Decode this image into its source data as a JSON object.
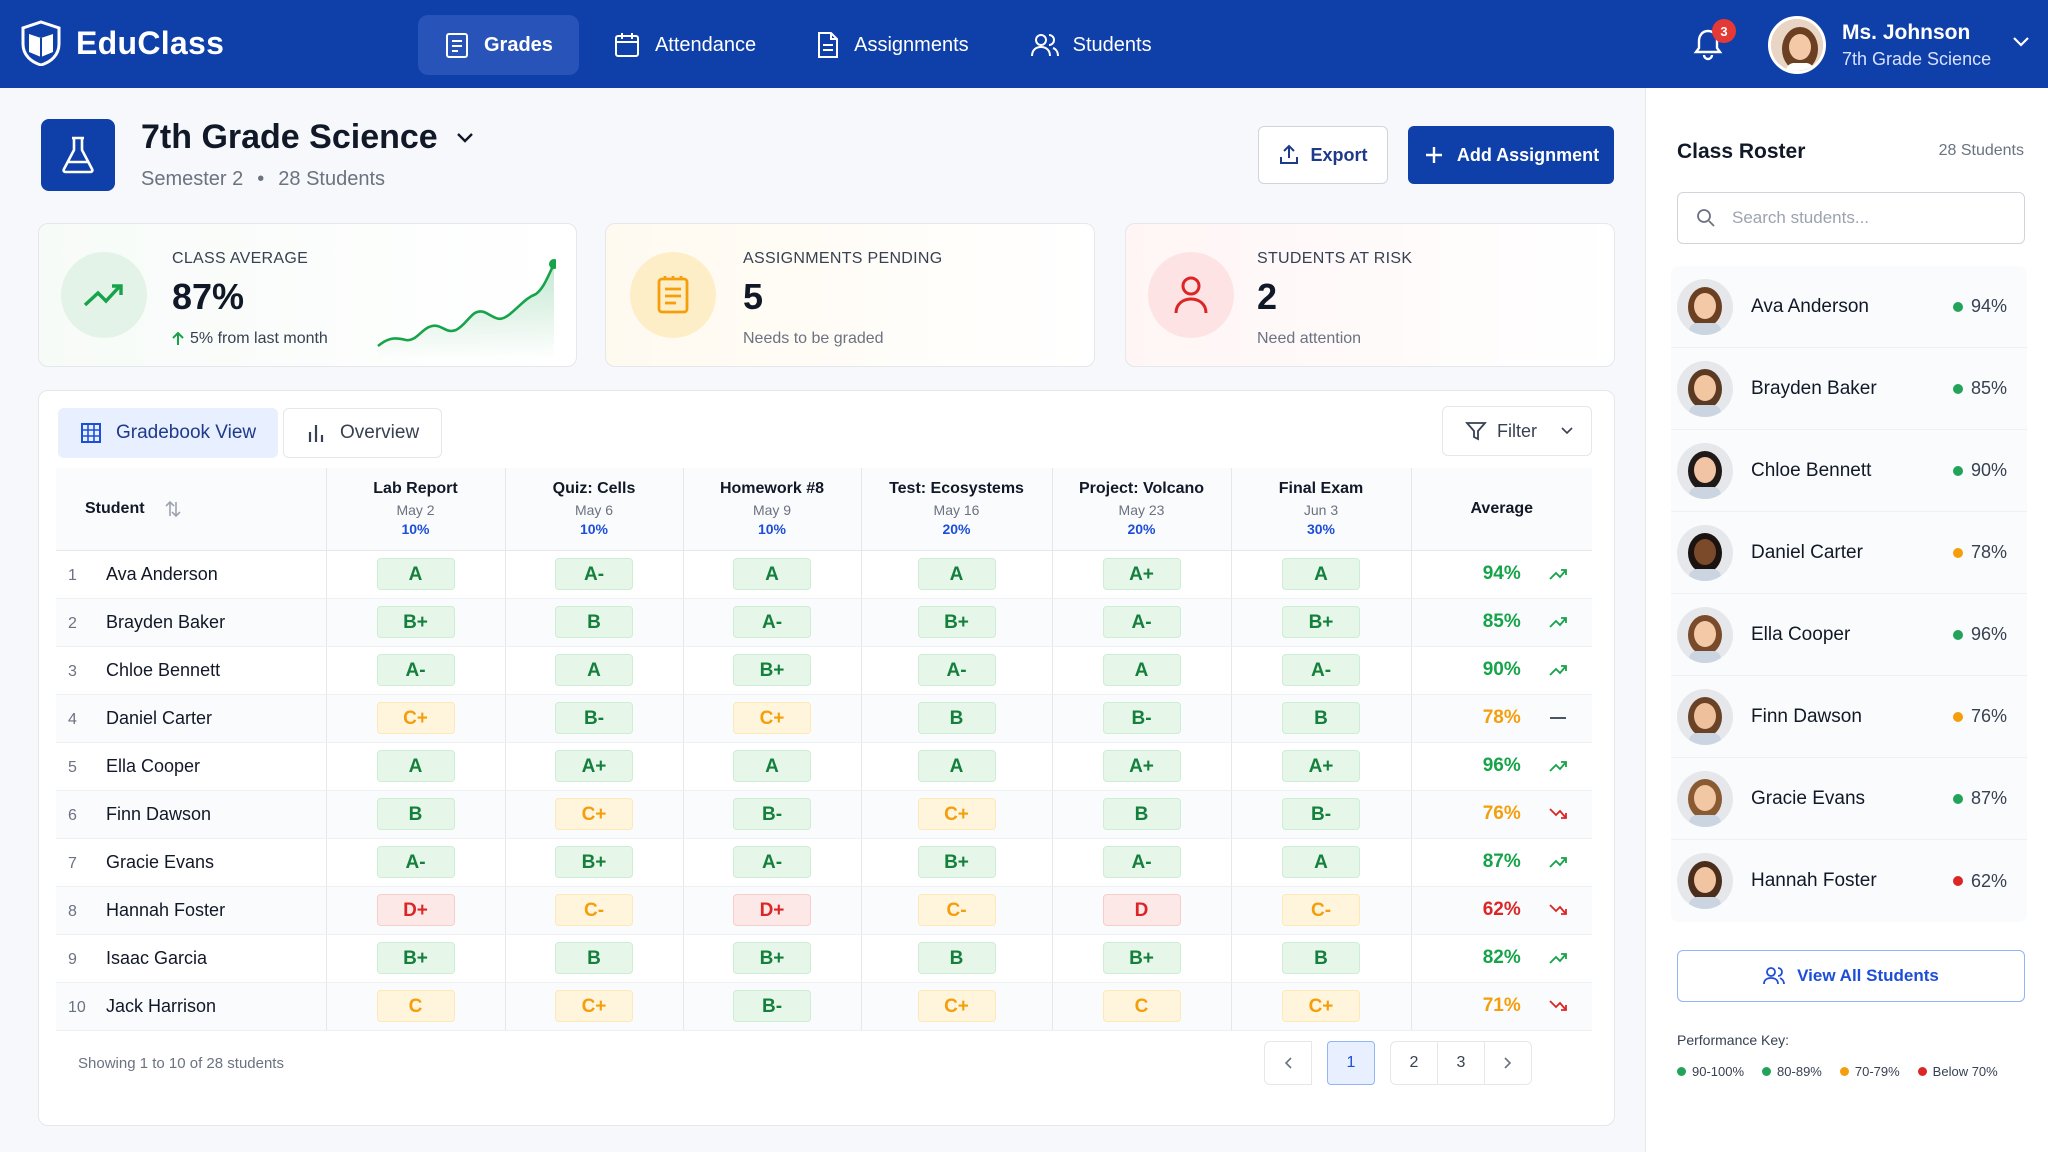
{
  "app": {
    "name": "EduClass"
  },
  "nav": [
    {
      "label": "Grades",
      "icon": "clipboard-icon",
      "active": true
    },
    {
      "label": "Attendance",
      "icon": "calendar-icon",
      "active": false
    },
    {
      "label": "Assignments",
      "icon": "document-icon",
      "active": false
    },
    {
      "label": "Students",
      "icon": "users-icon",
      "active": false
    }
  ],
  "notifications": {
    "count": "3"
  },
  "user": {
    "name": "Ms. Johnson",
    "role": "7th Grade Science"
  },
  "header": {
    "title": "7th Grade Science",
    "semester": "Semester 2",
    "separator": "•",
    "students": "28 Students",
    "export_label": "Export",
    "add_label": "Add Assignment"
  },
  "stats": {
    "class_average": {
      "label": "CLASS AVERAGE",
      "value": "87%",
      "change": "5% from last month"
    },
    "pending": {
      "label": "ASSIGNMENTS PENDING",
      "value": "5",
      "sub": "Needs to be graded"
    },
    "at_risk": {
      "label": "STUDENTS AT RISK",
      "value": "2",
      "sub": "Need attention"
    }
  },
  "tabs": {
    "gradebook": "Gradebook View",
    "overview": "Overview",
    "filter": "Filter"
  },
  "table": {
    "student_header": "Student",
    "average_header": "Average",
    "assignments": [
      {
        "name": "Lab Report",
        "date": "May 2",
        "weight": "10%"
      },
      {
        "name": "Quiz: Cells",
        "date": "May 6",
        "weight": "10%"
      },
      {
        "name": "Homework #8",
        "date": "May 9",
        "weight": "10%"
      },
      {
        "name": "Test: Ecosystems",
        "date": "May 16",
        "weight": "20%"
      },
      {
        "name": "Project: Volcano",
        "date": "May 23",
        "weight": "20%"
      },
      {
        "name": "Final Exam",
        "date": "Jun 3",
        "weight": "30%"
      }
    ],
    "rows": [
      {
        "num": "1",
        "name": "Ava Anderson",
        "grades": [
          "A",
          "A-",
          "A",
          "A",
          "A+",
          "A"
        ],
        "avg": "94%",
        "trend": "up"
      },
      {
        "num": "2",
        "name": "Brayden Baker",
        "grades": [
          "B+",
          "B",
          "A-",
          "B+",
          "A-",
          "B+"
        ],
        "avg": "85%",
        "trend": "up"
      },
      {
        "num": "3",
        "name": "Chloe Bennett",
        "grades": [
          "A-",
          "A",
          "B+",
          "A-",
          "A",
          "A-"
        ],
        "avg": "90%",
        "trend": "up"
      },
      {
        "num": "4",
        "name": "Daniel Carter",
        "grades": [
          "C+",
          "B-",
          "C+",
          "B",
          "B-",
          "B"
        ],
        "avg": "78%",
        "trend": "flat"
      },
      {
        "num": "5",
        "name": "Ella Cooper",
        "grades": [
          "A",
          "A+",
          "A",
          "A",
          "A+",
          "A+"
        ],
        "avg": "96%",
        "trend": "up"
      },
      {
        "num": "6",
        "name": "Finn Dawson",
        "grades": [
          "B",
          "C+",
          "B-",
          "C+",
          "B",
          "B-"
        ],
        "avg": "76%",
        "trend": "down"
      },
      {
        "num": "7",
        "name": "Gracie Evans",
        "grades": [
          "A-",
          "B+",
          "A-",
          "B+",
          "A-",
          "A"
        ],
        "avg": "87%",
        "trend": "up"
      },
      {
        "num": "8",
        "name": "Hannah Foster",
        "grades": [
          "D+",
          "C-",
          "D+",
          "C-",
          "D",
          "C-"
        ],
        "avg": "62%",
        "trend": "down"
      },
      {
        "num": "9",
        "name": "Isaac Garcia",
        "grades": [
          "B+",
          "B",
          "B+",
          "B",
          "B+",
          "B"
        ],
        "avg": "82%",
        "trend": "up"
      },
      {
        "num": "10",
        "name": "Jack Harrison",
        "grades": [
          "C",
          "C+",
          "B-",
          "C+",
          "C",
          "C+"
        ],
        "avg": "71%",
        "trend": "down"
      }
    ],
    "footer": "Showing 1 to 10 of 28 students",
    "pages": [
      "1",
      "2",
      "3"
    ]
  },
  "roster": {
    "title": "Class Roster",
    "count": "28 Students",
    "search_placeholder": "Search students...",
    "students": [
      {
        "name": "Ava Anderson",
        "pct": "94%",
        "color": "#22a35a"
      },
      {
        "name": "Brayden Baker",
        "pct": "85%",
        "color": "#22a35a"
      },
      {
        "name": "Chloe Bennett",
        "pct": "90%",
        "color": "#22a35a"
      },
      {
        "name": "Daniel Carter",
        "pct": "78%",
        "color": "#f59e0b"
      },
      {
        "name": "Ella Cooper",
        "pct": "96%",
        "color": "#22a35a"
      },
      {
        "name": "Finn Dawson",
        "pct": "76%",
        "color": "#f59e0b"
      },
      {
        "name": "Gracie Evans",
        "pct": "87%",
        "color": "#22a35a"
      },
      {
        "name": "Hannah Foster",
        "pct": "62%",
        "color": "#dc2626"
      }
    ],
    "view_all": "View All Students",
    "key_title": "Performance Key:",
    "key": [
      {
        "label": "90-100%",
        "color": "#22a35a"
      },
      {
        "label": "80-89%",
        "color": "#22a35a"
      },
      {
        "label": "70-79%",
        "color": "#f59e0b"
      },
      {
        "label": "Below 70%",
        "color": "#dc2626"
      }
    ]
  },
  "colors": {
    "brand": "#0f3fa8",
    "green": "#16a34a",
    "yellow": "#f59e0b",
    "red": "#dc2626"
  }
}
